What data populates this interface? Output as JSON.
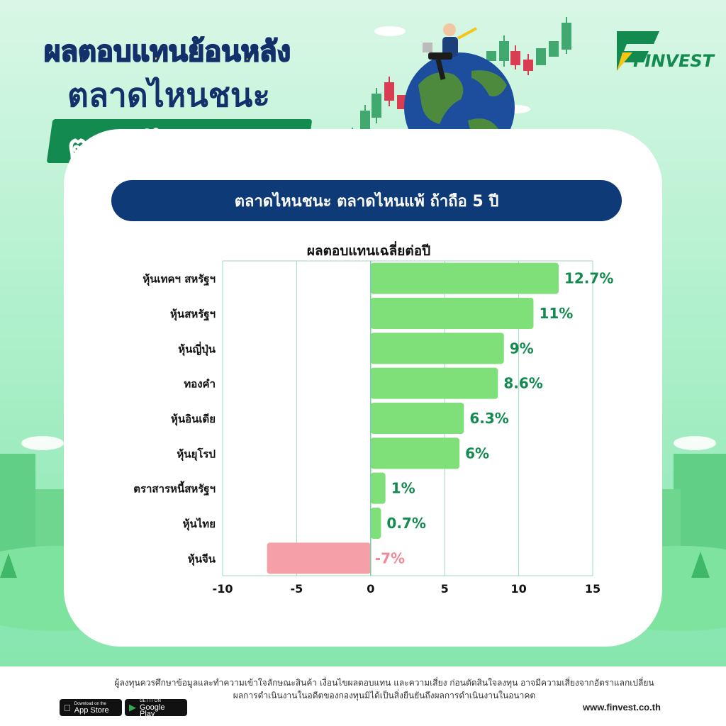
{
  "header": {
    "title_line1": "ผลตอบแทนย้อนหลัง",
    "title_line2": "ตลาดไหนชนะ",
    "title_line3": "ตลาดไหนแพ้?",
    "brand": "FINVEST"
  },
  "banner": {
    "text": "ตลาดไหนชนะ ตลาดไหนแพ้ ถ้าถือ 5 ปี"
  },
  "colors": {
    "positive_bar": "#7fe07a",
    "negative_bar": "#f5a0a8",
    "positive_label": "#138a4f",
    "negative_label": "#f08a96",
    "banner": "#0f3a78",
    "brand_green": "#138a4f"
  },
  "chart_data": {
    "type": "bar",
    "orientation": "horizontal",
    "title": "ผลตอบแทนเฉลี่ยต่อปี",
    "categories": [
      "หุ้นเทคฯ สหรัฐฯ",
      "หุ้นสหรัฐฯ",
      "หุ้นญี่ปุ่น",
      "ทองคำ",
      "หุ้นอินเดีย",
      "หุ้นยุโรป",
      "ตราสารหนี้สหรัฐฯ",
      "หุ้นไทย",
      "หุ้นจีน"
    ],
    "values": [
      12.7,
      11,
      9,
      8.6,
      6.3,
      6,
      1,
      0.7,
      -7
    ],
    "value_labels": [
      "12.7%",
      "11%",
      "9%",
      "8.6%",
      "6.3%",
      "6%",
      "1%",
      "0.7%",
      "-7%"
    ],
    "xlim": [
      -10,
      15
    ],
    "xticks": [
      "-10",
      "-5",
      "0",
      "5",
      "10",
      "15"
    ],
    "grid": true,
    "legend": "none"
  },
  "footer": {
    "disclaimer_line1": "ผู้ลงทุนควรศึกษาข้อมูลและทำความเข้าใจลักษณะสินค้า เงื่อนไขผลตอบแทน และความเสี่ยง ก่อนตัดสินใจลงทุน อาจมีความเสี่ยงจากอัตราแลกเปลี่ยน",
    "disclaimer_line2": "ผลการดำเนินงานในอดีตของกองทุนมิได้เป็นสิ่งยืนยันถึงผลการดำเนินงานในอนาคต",
    "app_store_small": "Download on the",
    "app_store": "App Store",
    "google_play_small": "GET IT ON",
    "google_play": "Google Play",
    "website": "www.finvest.co.th"
  }
}
